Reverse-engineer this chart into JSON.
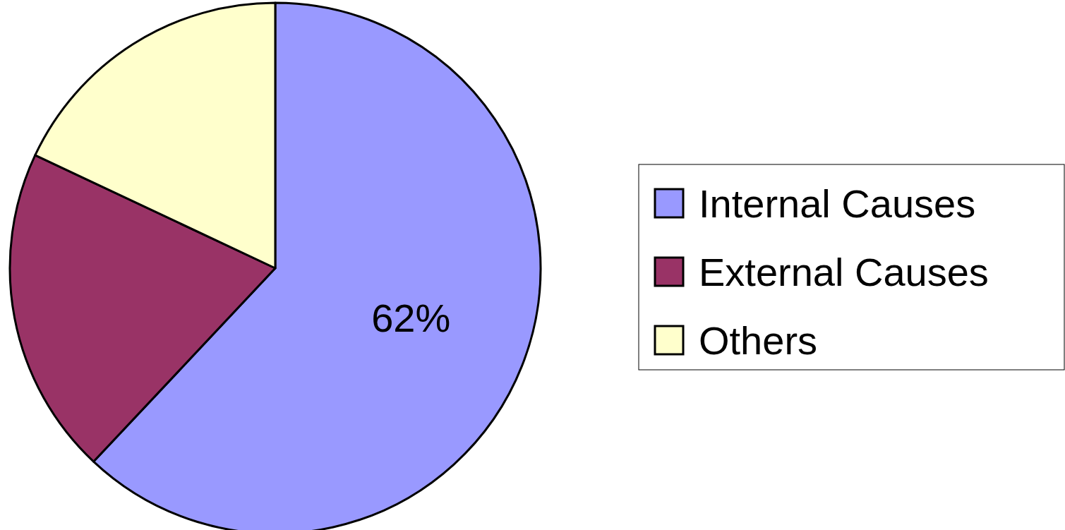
{
  "chart_data": {
    "type": "pie",
    "categories": [
      "Internal Causes",
      "External Causes",
      "Others"
    ],
    "values": [
      62,
      20,
      18
    ],
    "colors": [
      "#9999ff",
      "#993366",
      "#ffffcc"
    ],
    "value_labels": [
      "62%",
      null,
      null
    ],
    "legend": "right"
  }
}
